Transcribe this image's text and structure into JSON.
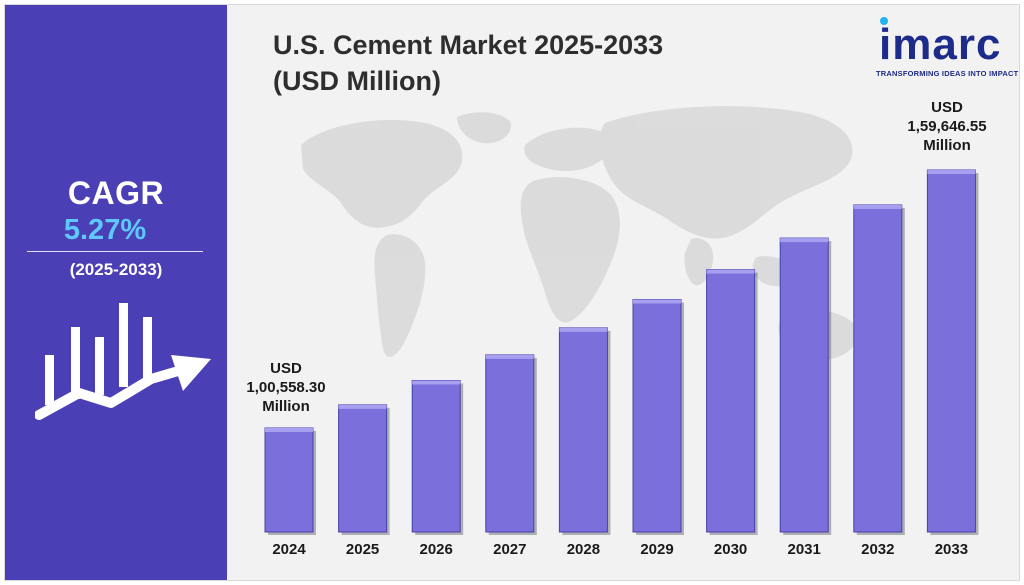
{
  "title_line1": "U.S. Cement Market 2025-2033",
  "title_line2": "(USD Million)",
  "cagr": {
    "label": "CAGR",
    "value": "5.27%",
    "period": "(2025-2033)"
  },
  "brand": {
    "name": "imarc",
    "tagline": "TRANSFORMING IDEAS INTO IMPACT"
  },
  "callouts": {
    "first": {
      "line1": "USD",
      "line2": "1,00,558.30",
      "line3": "Million"
    },
    "last": {
      "line1": "USD",
      "line2": "1,59,646.55",
      "line3": "Million"
    }
  },
  "colors": {
    "panel": "#4b3fb6",
    "bar": "#7b6fdc",
    "accent": "#5ec8ff",
    "map": "#d9d9d9"
  },
  "chart_data": {
    "type": "bar",
    "title": "U.S. Cement Market 2025-2033 (USD Million)",
    "categories": [
      "2024",
      "2025",
      "2026",
      "2027",
      "2028",
      "2029",
      "2030",
      "2031",
      "2032",
      "2033"
    ],
    "values": [
      100558.3,
      105860,
      111440,
      117310,
      123490,
      129990,
      136840,
      144050,
      151640,
      159646.55
    ],
    "units": "USD Million",
    "ylim": [
      0,
      160000
    ],
    "grid": false,
    "legend": "none"
  }
}
